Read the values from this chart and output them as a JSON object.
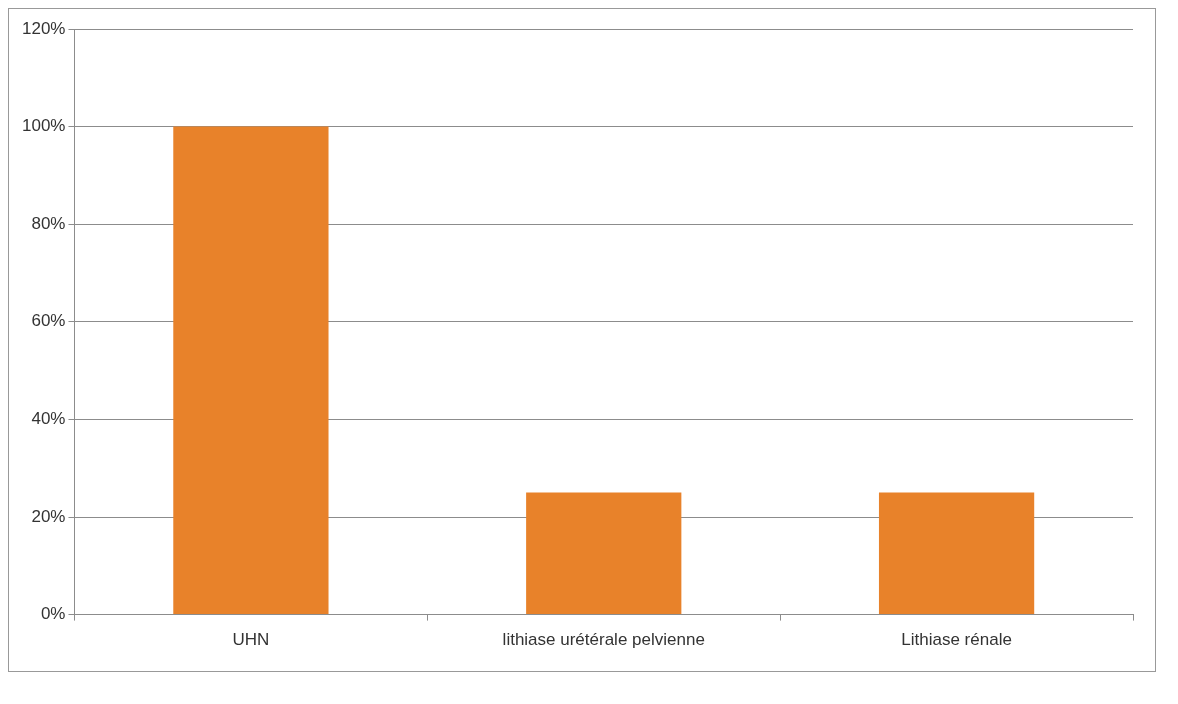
{
  "chart_data": {
    "type": "bar",
    "categories": [
      "UHN",
      "lithiase urétérale pelvienne",
      "Lithiase rénale"
    ],
    "values": [
      100,
      25,
      25
    ],
    "color": "#e8822a",
    "ylim": [
      0,
      120
    ],
    "yticks": [
      {
        "value": 0,
        "label": "0%"
      },
      {
        "value": 20,
        "label": "20%"
      },
      {
        "value": 40,
        "label": "40%"
      },
      {
        "value": 60,
        "label": "60%"
      },
      {
        "value": 80,
        "label": "80%"
      },
      {
        "value": 100,
        "label": "100%"
      },
      {
        "value": 120,
        "label": "120%"
      }
    ],
    "grid": "y",
    "legend": false
  }
}
